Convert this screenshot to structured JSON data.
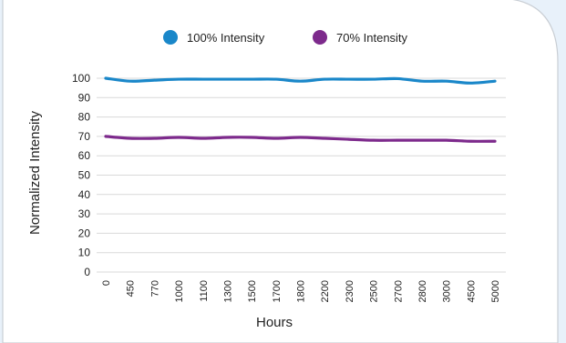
{
  "colors": {
    "background_tint": "#e8f1fa",
    "card_fill": "#ffffff",
    "card_border": "#c9ced4",
    "gridline": "#d9d9d9",
    "text": "#222222"
  },
  "chart_data": {
    "type": "line",
    "title": "",
    "xlabel": "Hours",
    "ylabel": "Normalized Intensity",
    "categories": [
      "0",
      "450",
      "770",
      "1000",
      "1100",
      "1300",
      "1500",
      "1700",
      "1800",
      "2200",
      "2300",
      "2500",
      "2700",
      "2800",
      "3000",
      "4500",
      "5000"
    ],
    "ylim": [
      0,
      100
    ],
    "yticks": [
      "0",
      "10",
      "20",
      "30",
      "40",
      "50",
      "60",
      "70",
      "80",
      "90",
      "100"
    ],
    "grid": true,
    "legend_position": "top",
    "series": [
      {
        "name": "100% Intensity",
        "color": "#1a87c9",
        "values": [
          100,
          98.5,
          99,
          99.5,
          99.5,
          99.5,
          99.5,
          99.5,
          98.5,
          99.5,
          99.5,
          99.5,
          99.8,
          98.5,
          98.5,
          97.5,
          98.5
        ]
      },
      {
        "name": "70% Intensity",
        "color": "#7d2a8c",
        "values": [
          70,
          69,
          69,
          69.5,
          69,
          69.5,
          69.5,
          69,
          69.5,
          69,
          68.5,
          68,
          68,
          68,
          68,
          67.5,
          67.5
        ]
      }
    ]
  }
}
